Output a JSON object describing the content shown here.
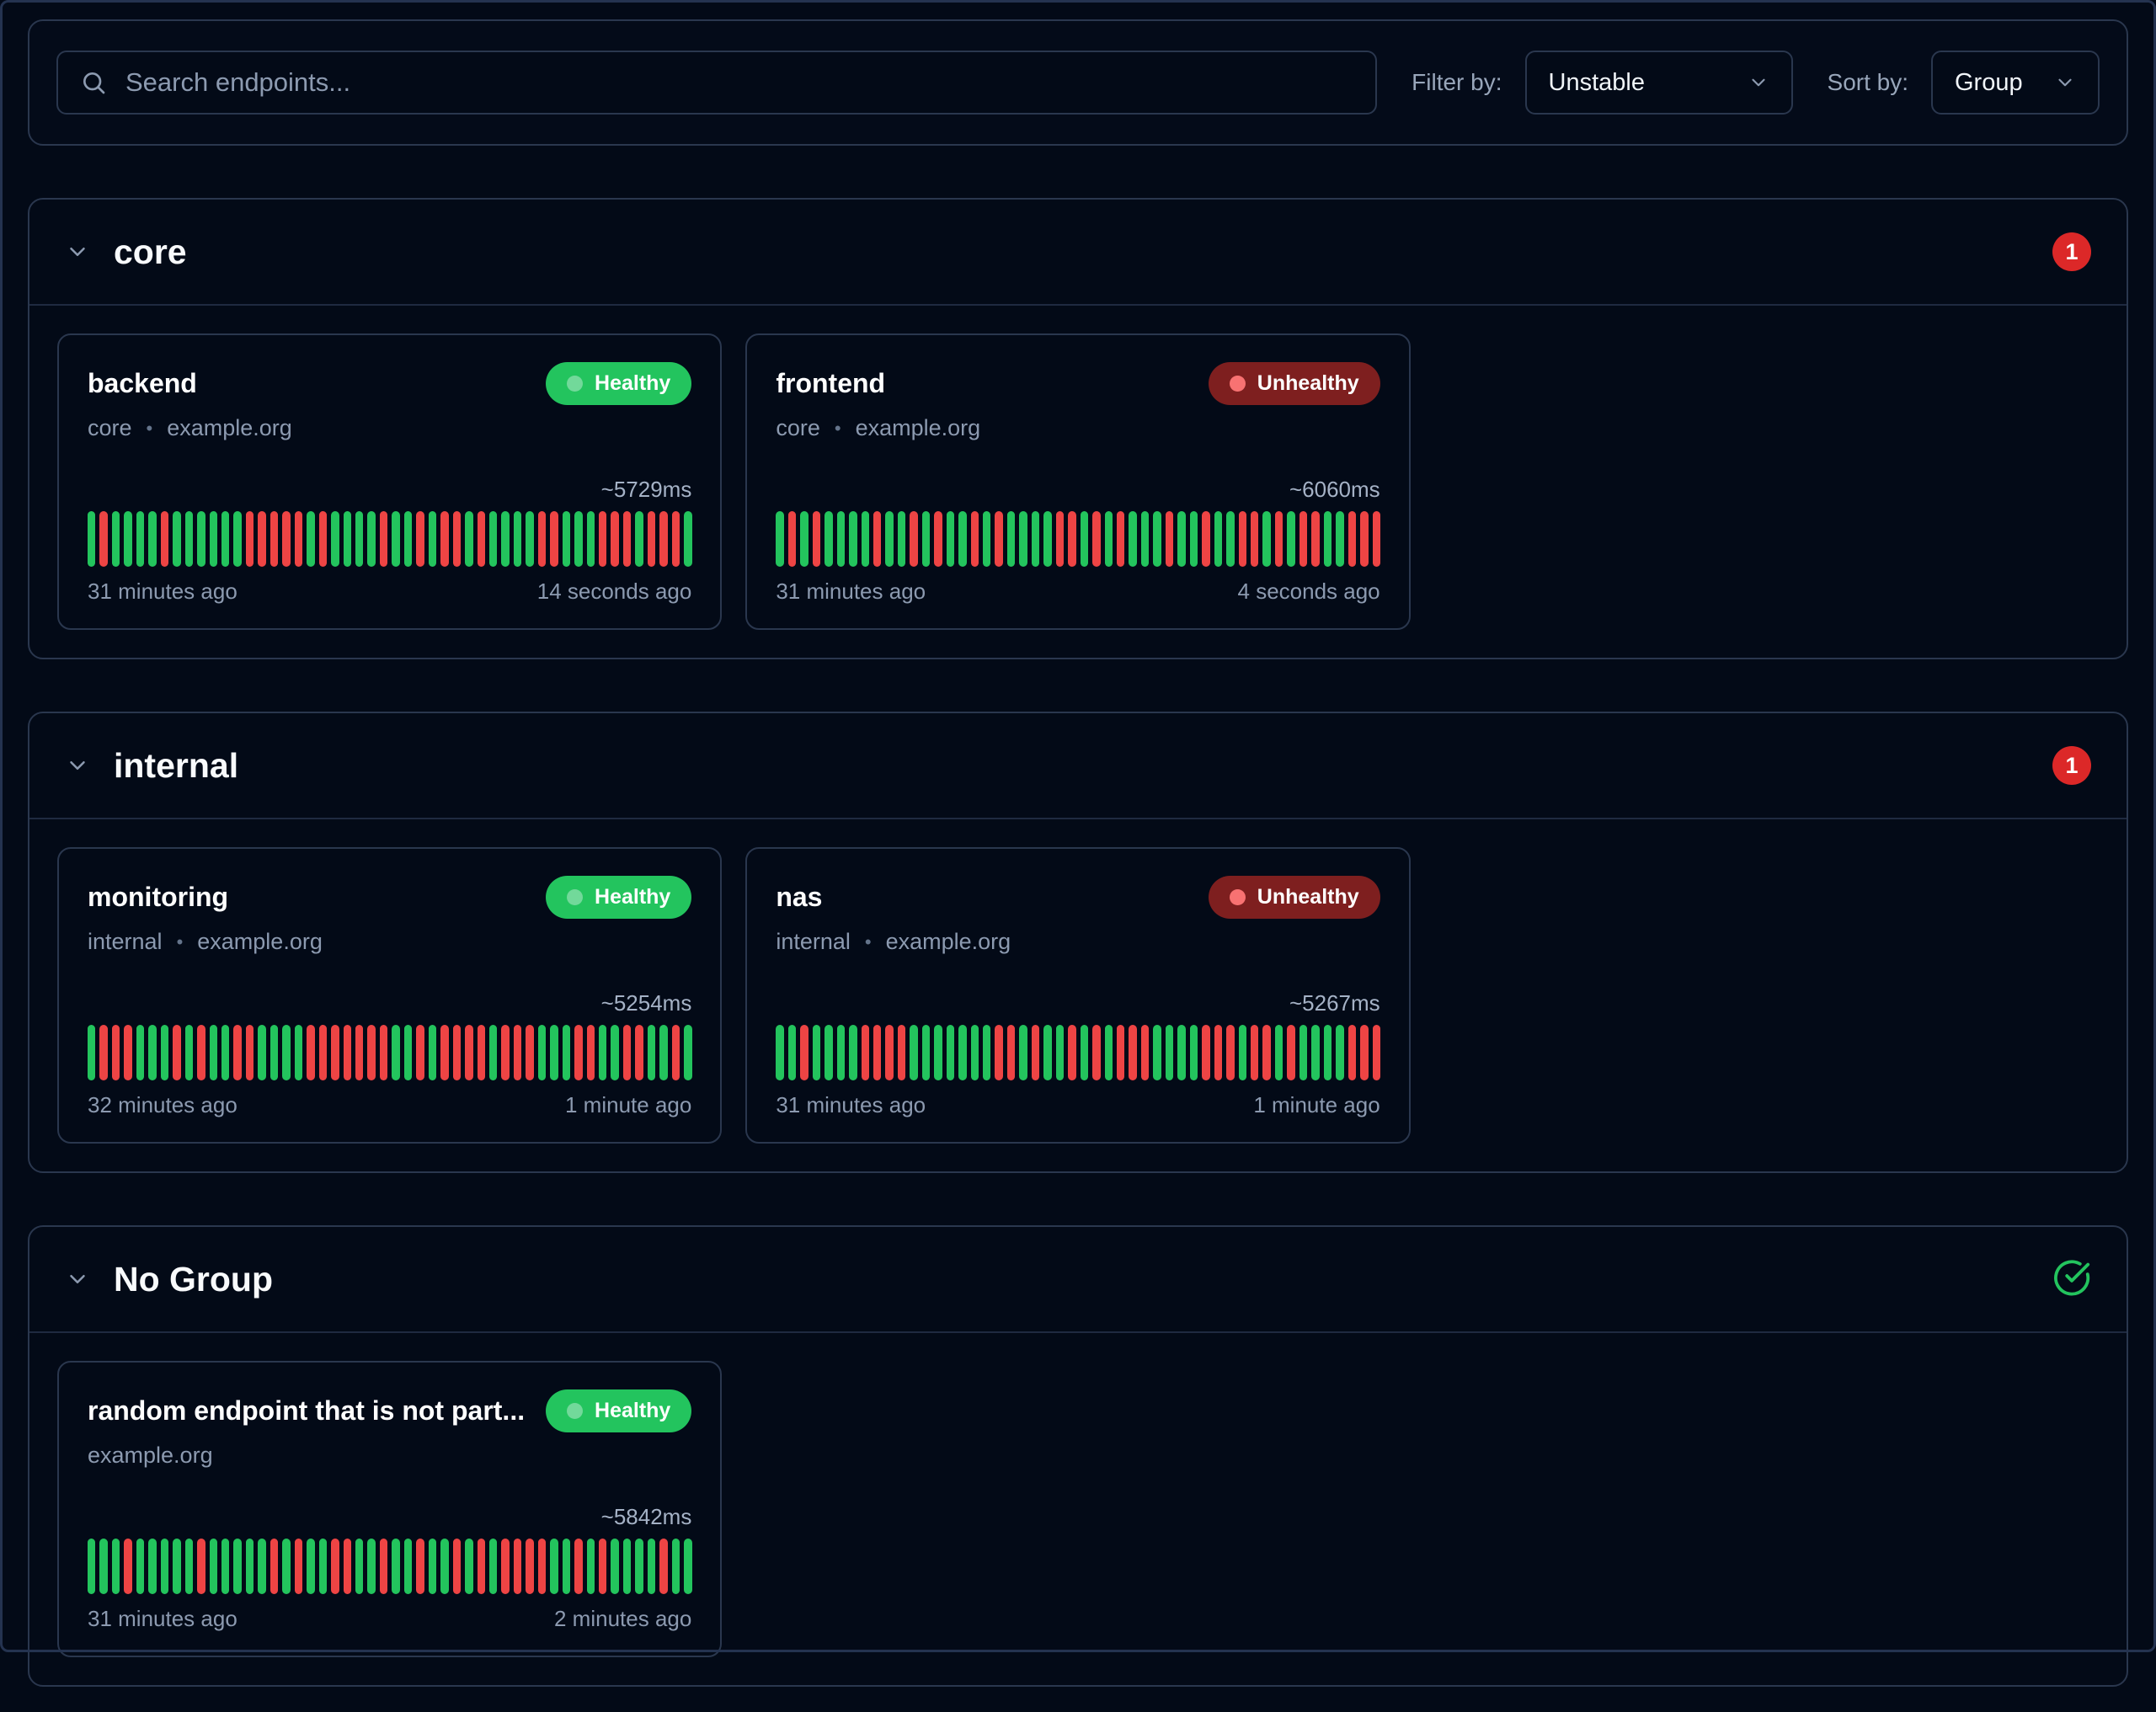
{
  "toolbar": {
    "search_placeholder": "Search endpoints...",
    "filter_label": "Filter by:",
    "filter_value": "Unstable",
    "sort_label": "Sort by:",
    "sort_value": "Group"
  },
  "subtitle_separator": "•",
  "colors": {
    "background": "#030a17",
    "border": "#2a374e",
    "healthy_green": "#23c45e",
    "unhealthy_red_bg": "#7e1f1f",
    "bar_green": "#23c45d",
    "bar_red": "#ee4444",
    "count_badge_red": "#dc2828",
    "muted_text": "#8c9ab0"
  },
  "groups": [
    {
      "name": "core",
      "status_badge": {
        "type": "count",
        "value": "1"
      },
      "endpoints": [
        {
          "name": "backend",
          "status": "Healthy",
          "subtitle": [
            "core",
            "example.org"
          ],
          "response_time": "~5729ms",
          "from": "31 minutes ago",
          "to": "14 seconds ago",
          "bars": "GRGGGGRGGGGGGRRRRRGRGGGGRGGRGRRGRGGGGRRGGGRRRGRRRG"
        },
        {
          "name": "frontend",
          "status": "Unhealthy",
          "subtitle": [
            "core",
            "example.org"
          ],
          "response_time": "~6060ms",
          "from": "31 minutes ago",
          "to": "4 seconds ago",
          "bars": "GRGRGGGGRGGRGRGGRGRGGGGRRGRGRGGGRGGRGGRRGRGRRGGRRR"
        }
      ]
    },
    {
      "name": "internal",
      "status_badge": {
        "type": "count",
        "value": "1"
      },
      "endpoints": [
        {
          "name": "monitoring",
          "status": "Healthy",
          "subtitle": [
            "internal",
            "example.org"
          ],
          "response_time": "~5254ms",
          "from": "32 minutes ago",
          "to": "1 minute ago",
          "bars": "GRRRGGGRGRGGRRGGGGRRRRRRRGGRGRRRRGRRRGGGRRGGRRGGRG"
        },
        {
          "name": "nas",
          "status": "Unhealthy",
          "subtitle": [
            "internal",
            "example.org"
          ],
          "response_time": "~5267ms",
          "from": "31 minutes ago",
          "to": "1 minute ago",
          "bars": "GGRGGGGRRRRGGGGGGGRRGRGGRGRGRRRGGGGRRRGRRGRGGGGRRR"
        }
      ]
    },
    {
      "name": "No Group",
      "status_badge": {
        "type": "check"
      },
      "endpoints": [
        {
          "name": "random endpoint that is not part...",
          "status": "Healthy",
          "subtitle": [
            "example.org"
          ],
          "response_time": "~5842ms",
          "from": "31 minutes ago",
          "to": "2 minutes ago",
          "bars": "GGGRGGGGGRGGGGGRGRGGRRGGRGGRGGRGRGRRRRGGRGRGGGGRGG"
        }
      ]
    }
  ]
}
